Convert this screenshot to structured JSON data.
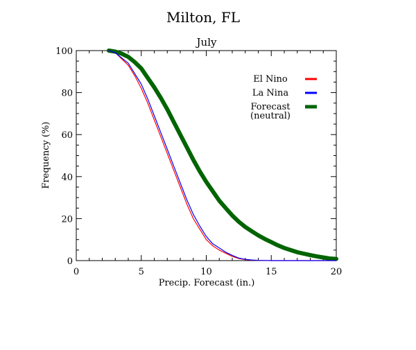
{
  "chart_data": {
    "type": "line",
    "title": "Milton, FL",
    "subtitle": "July",
    "xlabel": "Precip. Forecast (in.)",
    "ylabel": "Frequency (%)",
    "xlim": [
      0,
      20
    ],
    "ylim": [
      0,
      100
    ],
    "x_ticks": [
      0,
      5,
      10,
      15,
      20
    ],
    "y_ticks": [
      0,
      20,
      40,
      60,
      80,
      100
    ],
    "grid": false,
    "legend_position": "top-right",
    "series": [
      {
        "name": "El Nino",
        "color": "#ff0000",
        "x": [
          2.5,
          3,
          3.5,
          4,
          4.5,
          5,
          5.5,
          6,
          6.5,
          7,
          7.5,
          8,
          8.5,
          9,
          9.5,
          10,
          10.5,
          11,
          11.5,
          12,
          12.5,
          13,
          13.5,
          14,
          15,
          16,
          17,
          18,
          19,
          20
        ],
        "y": [
          100,
          99,
          96,
          93,
          88,
          82,
          75,
          67,
          59,
          51,
          43,
          35,
          27,
          20,
          15,
          10,
          7,
          5,
          3.5,
          2,
          1,
          0.5,
          0.2,
          0.1,
          0,
          0,
          0,
          0,
          0,
          0
        ]
      },
      {
        "name": "La Nina",
        "color": "#0000ff",
        "x": [
          2.5,
          3,
          3.5,
          4,
          4.5,
          5,
          5.5,
          6,
          6.5,
          7,
          7.5,
          8,
          8.5,
          9,
          9.5,
          10,
          10.5,
          11,
          11.5,
          12,
          12.5,
          13,
          13.5,
          14,
          15,
          16,
          17,
          18,
          19,
          20
        ],
        "y": [
          100,
          99,
          96.5,
          94,
          89,
          84,
          77,
          69,
          61,
          53,
          45,
          37,
          29,
          22,
          16.5,
          11.5,
          8,
          6,
          4,
          2.5,
          1.2,
          0.6,
          0.3,
          0.1,
          0,
          0,
          0,
          0,
          0,
          0
        ]
      },
      {
        "name": "Forecast (neutral)",
        "label_lines": [
          "Forecast",
          "(neutral)"
        ],
        "color": "#006400",
        "x": [
          2.5,
          3,
          3.5,
          4,
          4.5,
          5,
          5.5,
          6,
          6.5,
          7,
          7.5,
          8,
          8.5,
          9,
          9.5,
          10,
          10.5,
          11,
          11.5,
          12,
          12.5,
          13,
          13.5,
          14,
          14.5,
          15,
          15.5,
          16,
          16.5,
          17,
          17.5,
          18,
          18.5,
          19,
          19.5,
          20
        ],
        "y": [
          100,
          99.5,
          98.5,
          97,
          94.5,
          91.5,
          87,
          82.5,
          77.5,
          72,
          66,
          60,
          54,
          48,
          42.5,
          37.5,
          33,
          28.5,
          25,
          21.5,
          18.5,
          16,
          14,
          12,
          10.3,
          8.8,
          7.3,
          6,
          5,
          4,
          3.3,
          2.6,
          2,
          1.5,
          1,
          0.8
        ]
      }
    ]
  }
}
